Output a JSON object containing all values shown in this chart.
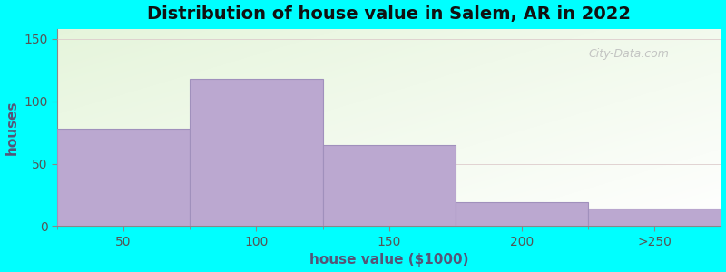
{
  "title": "Distribution of house value in Salem, AR in 2022",
  "xlabel": "house value ($1000)",
  "ylabel": "houses",
  "bin_edges": [
    0,
    1,
    2,
    3,
    4,
    5
  ],
  "xtick_positions": [
    0.5,
    1.5,
    2.5,
    3.5,
    4.5
  ],
  "xtick_labels": [
    "50",
    "100",
    "150",
    "200",
    ">250"
  ],
  "bar_values": [
    78,
    118,
    65,
    19,
    14
  ],
  "bar_color": "#BBA8D0",
  "bar_edgecolor": "#A090BC",
  "ylim": [
    0,
    158
  ],
  "yticks": [
    0,
    50,
    100,
    150
  ],
  "outer_bg": "#00FFFF",
  "title_fontsize": 14,
  "axis_label_fontsize": 11,
  "tick_fontsize": 10,
  "watermark_text": "City-Data.com"
}
